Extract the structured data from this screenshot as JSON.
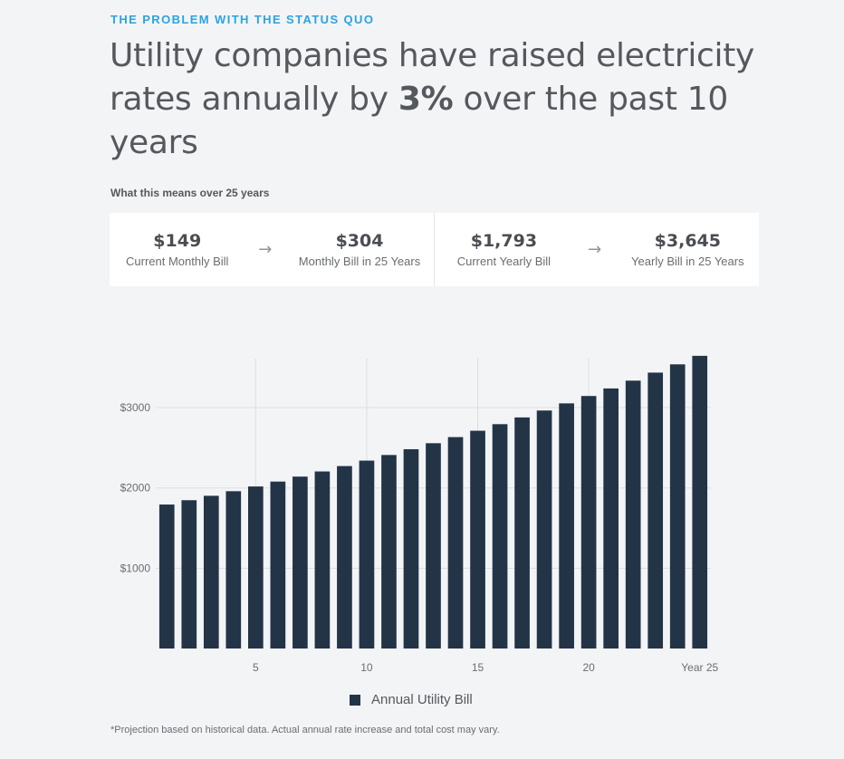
{
  "header": {
    "eyebrow": "THE PROBLEM WITH THE STATUS QUO",
    "headline_pre": "Utility companies have raised electricity rates annually by ",
    "headline_pct": "3%",
    "headline_post": " over the past 10 years",
    "subhead": "What this means over 25 years"
  },
  "stats": {
    "monthly": [
      {
        "value": "$149",
        "label": "Current Monthly Bill"
      },
      {
        "value": "$304",
        "label": "Monthly Bill in 25 Years"
      }
    ],
    "yearly": [
      {
        "value": "$1,793",
        "label": "Current Yearly Bill"
      },
      {
        "value": "$3,645",
        "label": "Yearly Bill in 25 Years"
      }
    ],
    "arrow_icon": "arrow-right-icon"
  },
  "chart_data": {
    "type": "bar",
    "x": [
      1,
      2,
      3,
      4,
      5,
      6,
      7,
      8,
      9,
      10,
      11,
      12,
      13,
      14,
      15,
      16,
      17,
      18,
      19,
      20,
      21,
      22,
      23,
      24,
      25
    ],
    "values": [
      1793,
      1847,
      1902,
      1959,
      2018,
      2079,
      2141,
      2205,
      2272,
      2340,
      2410,
      2482,
      2557,
      2633,
      2712,
      2794,
      2878,
      2964,
      3053,
      3145,
      3239,
      3336,
      3436,
      3539,
      3645
    ],
    "x_ticks": [
      5,
      10,
      15,
      20,
      25
    ],
    "x_tick_labels": [
      "5",
      "10",
      "15",
      "20",
      "Year 25"
    ],
    "y_ticks": [
      1000,
      2000,
      3000
    ],
    "y_tick_labels": [
      "$1000",
      "$2000",
      "$3000"
    ],
    "ylim": [
      0,
      3700
    ],
    "xlim": [
      0.5,
      25.5
    ],
    "bar_color": "#233447",
    "grid": true,
    "legend": "bottom-center",
    "series": [
      {
        "name": "Annual Utility Bill",
        "values": [
          1793,
          1847,
          1902,
          1959,
          2018,
          2079,
          2141,
          2205,
          2272,
          2340,
          2410,
          2482,
          2557,
          2633,
          2712,
          2794,
          2878,
          2964,
          3053,
          3145,
          3239,
          3336,
          3436,
          3539,
          3645
        ]
      }
    ]
  },
  "footnote": "*Projection based on historical data. Actual annual rate increase and total cost may vary."
}
